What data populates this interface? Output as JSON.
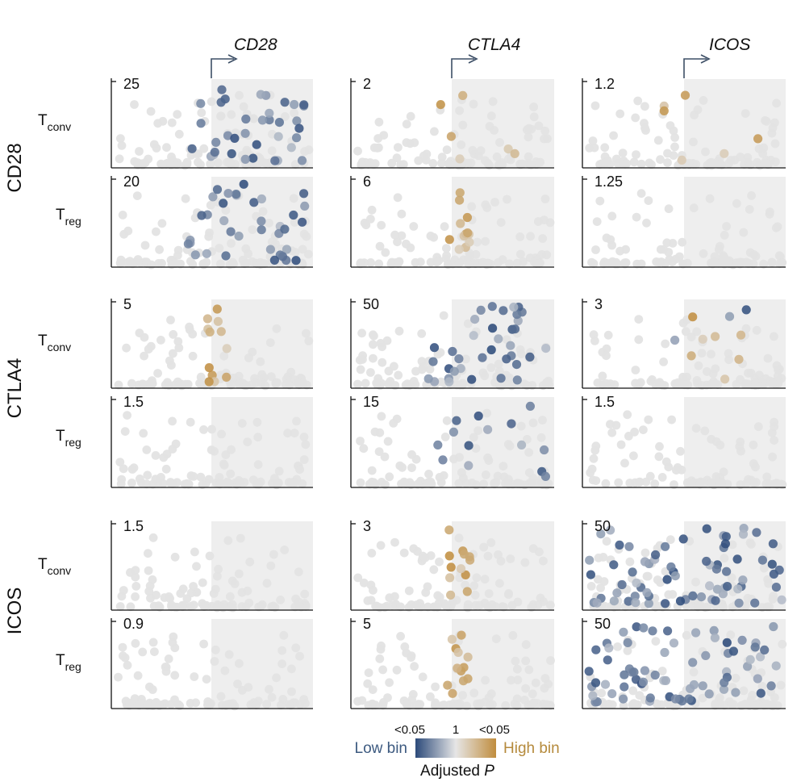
{
  "chart_data": {
    "type": "scatter",
    "description_labels": {
      "columns": [
        "CD28",
        "CTLA4",
        "ICOS"
      ],
      "row_groups": [
        "CD28",
        "CTLA4",
        "ICOS"
      ],
      "subrows": [
        {
          "main": "T",
          "sub": "conv"
        },
        {
          "main": "T",
          "sub": "reg"
        }
      ]
    },
    "y_max_ticks": {
      "CD28": {
        "CD28": [
          "25",
          "20"
        ],
        "CTLA4": [
          "2",
          "6"
        ],
        "ICOS": [
          "1.2",
          "1.25"
        ]
      },
      "CTLA4": {
        "CD28": [
          "5",
          "1.5"
        ],
        "CTLA4": [
          "50",
          "15"
        ],
        "ICOS": [
          "3",
          "1.5"
        ]
      },
      "ICOS": {
        "CD28": [
          "1.5",
          "0.9"
        ],
        "CTLA4": [
          "3",
          "5"
        ],
        "ICOS": [
          "50",
          "50"
        ]
      }
    },
    "panel_colour_profile": {
      "CD28": {
        "CD28": [
          "low_strong",
          "low_strong"
        ],
        "CTLA4": [
          "high_sparse",
          "high_cluster"
        ],
        "ICOS": [
          "high_sparse",
          "none"
        ]
      },
      "CTLA4": {
        "CD28": [
          "high_cluster",
          "none"
        ],
        "CTLA4": [
          "low_strong",
          "low_sparse"
        ],
        "ICOS": [
          "mixed_sparse",
          "none"
        ]
      },
      "ICOS": {
        "CD28": [
          "none",
          "none"
        ],
        "CTLA4": [
          "high_cluster",
          "high_cluster"
        ],
        "ICOS": [
          "low_full",
          "low_full"
        ]
      }
    },
    "legend": {
      "left_tick": "<0.05",
      "mid_tick": "1",
      "right_tick": "<0.05",
      "low_label": "Low bin",
      "high_label": "High bin",
      "title_main": "Adjusted ",
      "title_italic": "P",
      "colors": {
        "low": "#2c4a7a",
        "mid": "#e6e6e6",
        "high": "#c08d3e"
      }
    },
    "colors": {
      "shade": "#eeeeee",
      "neutral_dot": "#e3e3e3",
      "low": "#2c4a7a",
      "high": "#c08d3e"
    }
  }
}
